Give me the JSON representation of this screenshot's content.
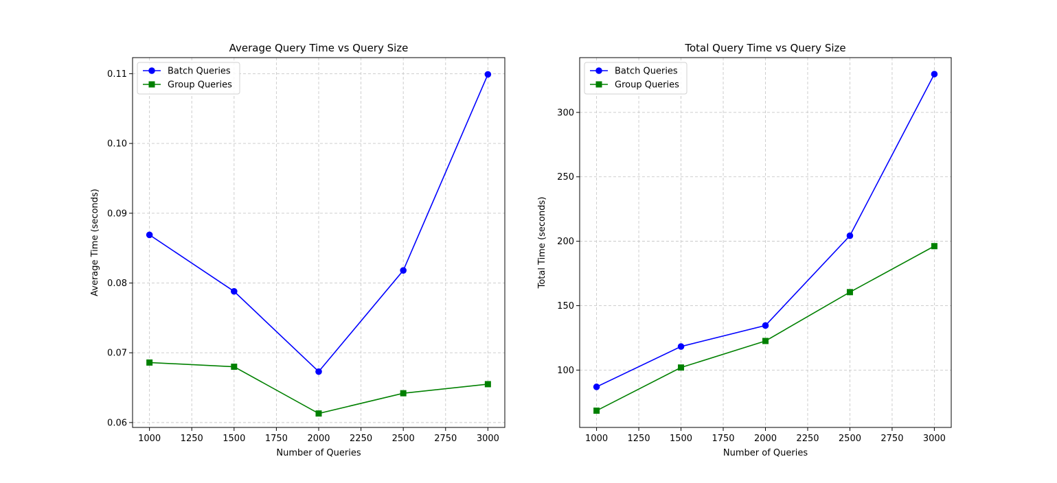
{
  "chart_data": [
    {
      "type": "line",
      "title": "Average Query Time vs Query Size",
      "xlabel": "Number of Queries",
      "ylabel": "Average Time (seconds)",
      "xlim": [
        900,
        3100
      ],
      "ylim": [
        0.0593,
        0.1123
      ],
      "xticks": [
        1000,
        1250,
        1500,
        1750,
        2000,
        2250,
        2500,
        2750,
        3000
      ],
      "xtick_labels": [
        "1000",
        "1250",
        "1500",
        "1750",
        "2000",
        "2250",
        "2500",
        "2750",
        "3000"
      ],
      "yticks": [
        0.06,
        0.07,
        0.08,
        0.09,
        0.1,
        0.11
      ],
      "ytick_labels": [
        "0.06",
        "0.07",
        "0.08",
        "0.09",
        "0.10",
        "0.11"
      ],
      "grid": true,
      "legend_position": "top-left",
      "x": [
        1000,
        1500,
        2000,
        2500,
        3000
      ],
      "series": [
        {
          "name": "Batch Queries",
          "color": "#0000ff",
          "marker": "circle",
          "values": [
            0.0869,
            0.0788,
            0.0673,
            0.0818,
            0.1099
          ]
        },
        {
          "name": "Group Queries",
          "color": "#008000",
          "marker": "square",
          "values": [
            0.0686,
            0.068,
            0.0613,
            0.0642,
            0.0655
          ]
        }
      ]
    },
    {
      "type": "line",
      "title": "Total Query Time vs Query Size",
      "xlabel": "Number of Queries",
      "ylabel": "Total Time (seconds)",
      "xlim": [
        900,
        3100
      ],
      "ylim": [
        55.5,
        342.5
      ],
      "xticks": [
        1000,
        1250,
        1500,
        1750,
        2000,
        2250,
        2500,
        2750,
        3000
      ],
      "xtick_labels": [
        "1000",
        "1250",
        "1500",
        "1750",
        "2000",
        "2250",
        "2500",
        "2750",
        "3000"
      ],
      "yticks": [
        100,
        150,
        200,
        250,
        300
      ],
      "ytick_labels": [
        "100",
        "150",
        "200",
        "250",
        "300"
      ],
      "grid": true,
      "legend_position": "top-left",
      "x": [
        1000,
        1500,
        2000,
        2500,
        3000
      ],
      "series": [
        {
          "name": "Batch Queries",
          "color": "#0000ff",
          "marker": "circle",
          "values": [
            87,
            118.3,
            134.6,
            204.3,
            329.7
          ]
        },
        {
          "name": "Group Queries",
          "color": "#008000",
          "marker": "square",
          "values": [
            68.5,
            102,
            122.6,
            160.5,
            196.2
          ]
        }
      ]
    }
  ]
}
